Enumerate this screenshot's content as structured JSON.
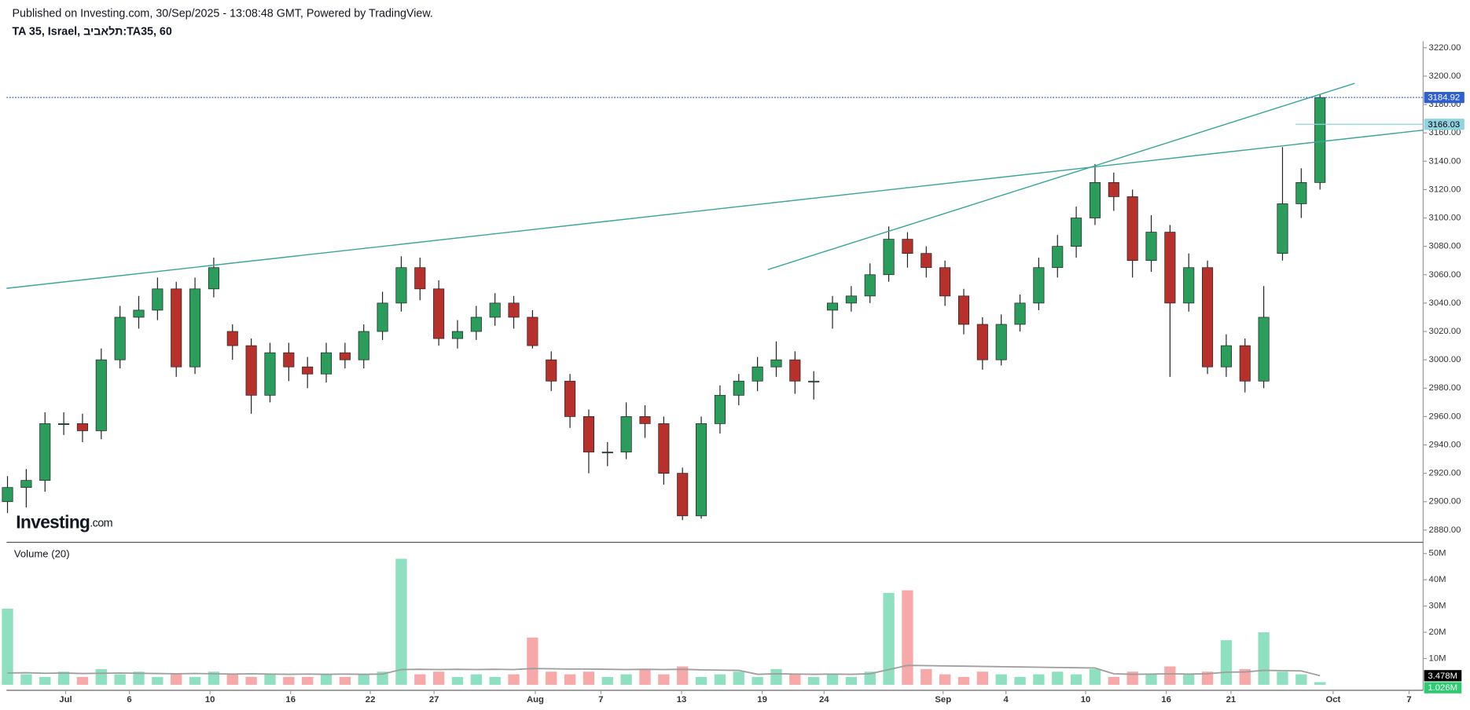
{
  "header": {
    "published": "Published on Investing.com, 30/Sep/2025 - 13:08:48 GMT, Powered by TradingView.",
    "symbol": "TA 35, Israel, תלאביב:TA35, 60"
  },
  "logo": {
    "brand": "Investing",
    "suffix": ".com"
  },
  "chart_data": {
    "type": "candlestick",
    "up_color": "#2a9d5c",
    "down_color": "#b7312c",
    "ylim": [
      2872,
      3224.6
    ],
    "yticks": [
      {
        "value": 2880,
        "label": "2880.00"
      },
      {
        "value": 2900,
        "label": "2900.00"
      },
      {
        "value": 2920,
        "label": "2920.00"
      },
      {
        "value": 2940,
        "label": "2940.00"
      },
      {
        "value": 2960,
        "label": "2960.00"
      },
      {
        "value": 2980,
        "label": "2980.00"
      },
      {
        "value": 3000,
        "label": "3000.00"
      },
      {
        "value": 3020,
        "label": "3020.00"
      },
      {
        "value": 3040,
        "label": "3040.00"
      },
      {
        "value": 3060,
        "label": "3060.00"
      },
      {
        "value": 3080,
        "label": "3080.00"
      },
      {
        "value": 3100,
        "label": "3100.00"
      },
      {
        "value": 3120,
        "label": "3120.00"
      },
      {
        "value": 3140,
        "label": "3140.00"
      },
      {
        "value": 3160,
        "label": "3160.00"
      },
      {
        "value": 3180,
        "label": "3180.00"
      },
      {
        "value": 3200,
        "label": "3200.00"
      },
      {
        "value": 3220,
        "label": "3220.00"
      }
    ],
    "grid": false,
    "xlim": [
      -0.05,
      75.5
    ],
    "xticks": [
      {
        "value": 3.1,
        "label": "Jul"
      },
      {
        "value": 6.5,
        "label": "6"
      },
      {
        "value": 10.8,
        "label": "10"
      },
      {
        "value": 15.1,
        "label": "16"
      },
      {
        "value": 19.35,
        "label": "22"
      },
      {
        "value": 22.75,
        "label": "27"
      },
      {
        "value": 28.15,
        "label": "Aug"
      },
      {
        "value": 31.65,
        "label": "7"
      },
      {
        "value": 35.95,
        "label": "13"
      },
      {
        "value": 40.25,
        "label": "19"
      },
      {
        "value": 43.55,
        "label": "24"
      },
      {
        "value": 49.9,
        "label": "Sep"
      },
      {
        "value": 53.25,
        "label": "4"
      },
      {
        "value": 57.5,
        "label": "10"
      },
      {
        "value": 61.8,
        "label": "16"
      },
      {
        "value": 65.25,
        "label": "21"
      },
      {
        "value": 70.7,
        "label": "Oct"
      },
      {
        "value": 74.75,
        "label": "7"
      }
    ],
    "open": [
      2900,
      2910,
      2915,
      2955,
      2955,
      2950,
      3000,
      3030,
      3035,
      3050,
      2995,
      3050,
      3020,
      3010,
      2975,
      3005,
      2995,
      2990,
      3005,
      3000,
      3020,
      3040,
      3065,
      3050,
      3015,
      3020,
      3030,
      3040,
      3030,
      3000,
      2985,
      2960,
      2935,
      2935,
      2960,
      2955,
      2920,
      2890,
      2955,
      2975,
      2985,
      2995,
      3000,
      2985,
      3035,
      3040,
      3045,
      3060,
      3085,
      3075,
      3065,
      3045,
      3025,
      3000,
      3025,
      3040,
      3065,
      3080,
      3100,
      3125,
      3115,
      3070,
      3090,
      3040,
      3065,
      2995,
      3010,
      2985,
      3075,
      3110,
      3125
    ],
    "high": [
      2918,
      2923,
      2963,
      2963,
      2962,
      3008,
      3038,
      3045,
      3058,
      3055,
      3058,
      3072,
      3025,
      3015,
      3012,
      3012,
      3002,
      3012,
      3012,
      3025,
      3048,
      3073,
      3072,
      3056,
      3028,
      3038,
      3047,
      3045,
      3035,
      3006,
      2990,
      2965,
      2942,
      2970,
      2968,
      2960,
      2924,
      2960,
      2982,
      2990,
      3002,
      3013,
      3006,
      2992,
      3045,
      3052,
      3068,
      3094,
      3090,
      3080,
      3070,
      3050,
      3030,
      3032,
      3046,
      3072,
      3088,
      3108,
      3138,
      3132,
      3120,
      3102,
      3095,
      3075,
      3070,
      3018,
      3015,
      3052,
      3150,
      3135,
      3187
    ],
    "low": [
      2892,
      2896,
      2907,
      2947,
      2942,
      2944,
      2994,
      3022,
      3028,
      2988,
      2990,
      3044,
      3000,
      2962,
      2970,
      2985,
      2980,
      2984,
      2994,
      2994,
      3014,
      3034,
      3042,
      3010,
      3008,
      3014,
      3024,
      3022,
      3008,
      2978,
      2952,
      2920,
      2925,
      2930,
      2945,
      2912,
      2887,
      2888,
      2948,
      2968,
      2978,
      2988,
      2976,
      2972,
      3022,
      3034,
      3040,
      3055,
      3065,
      3058,
      3038,
      3018,
      2993,
      2996,
      3020,
      3035,
      3058,
      3072,
      3095,
      3105,
      3058,
      3062,
      2988,
      3034,
      2990,
      2988,
      2977,
      2980,
      3070,
      3100,
      3120
    ],
    "close": [
      2910,
      2915,
      2955,
      2955,
      2950,
      3000,
      3030,
      3035,
      3050,
      2995,
      3050,
      3065,
      3010,
      2975,
      3005,
      2995,
      2990,
      3005,
      3000,
      3020,
      3040,
      3065,
      3050,
      3015,
      3020,
      3030,
      3040,
      3030,
      3010,
      2985,
      2960,
      2935,
      2935,
      2960,
      2955,
      2920,
      2890,
      2955,
      2975,
      2985,
      2995,
      3000,
      2985,
      2985,
      3040,
      3045,
      3060,
      3085,
      3075,
      3065,
      3045,
      3025,
      3000,
      3025,
      3040,
      3065,
      3080,
      3100,
      3125,
      3115,
      3070,
      3090,
      3040,
      3065,
      2995,
      3010,
      2985,
      3030,
      3110,
      3125,
      3184.92
    ],
    "trendlines": [
      {
        "x": [
          -0.05,
          75.5
        ],
        "y": [
          3050.4,
          3161.9
        ]
      },
      {
        "x": [
          40.55,
          71.85
        ],
        "y": [
          3063.6,
          3194.9
        ]
      }
    ],
    "trendline_color": "#3aa69a",
    "price_lines": [
      {
        "value": 3184.92,
        "dotted": true,
        "color": "#2f5fd0",
        "label_color": "#ffffff"
      },
      {
        "value": 3166.03,
        "from": 68.7,
        "dotted": false,
        "color": "#8fd3e0",
        "label_color": "#000000"
      }
    ],
    "volume": {
      "title": "Volume (20)",
      "up_color": "#8fe0c0",
      "down_color": "#f7a8a8",
      "ma_color": "#9e9e9e",
      "ylim": [
        -2.1,
        53.9
      ],
      "yticks": [
        {
          "value": 10,
          "label": "10M"
        },
        {
          "value": 20,
          "label": "20M"
        },
        {
          "value": 30,
          "label": "30M"
        },
        {
          "value": 40,
          "label": "40M"
        },
        {
          "value": 50,
          "label": "50M"
        }
      ],
      "values": [
        29,
        4,
        3,
        5,
        3,
        6,
        4,
        5,
        3,
        4,
        3,
        5,
        4,
        3,
        4,
        3,
        3,
        4,
        3,
        4,
        5,
        48,
        4,
        5,
        3,
        4,
        3,
        4,
        18,
        5,
        4,
        5,
        3,
        4,
        6,
        4,
        7,
        3,
        4,
        5,
        3,
        6,
        4,
        3,
        4,
        3,
        5,
        35,
        36,
        6,
        4,
        3,
        5,
        4,
        3,
        4,
        5,
        4,
        6,
        3,
        5,
        4,
        7,
        4,
        5,
        17,
        6,
        20,
        5,
        4,
        1.026
      ],
      "ma": [
        4.5,
        4.6,
        4.4,
        4.5,
        4.3,
        4.4,
        4.5,
        4.4,
        4.3,
        4.2,
        4.3,
        4.2,
        4.1,
        4.2,
        4.1,
        4.0,
        4.1,
        4.0,
        4.1,
        4.0,
        4.1,
        5.8,
        5.9,
        5.8,
        5.9,
        5.8,
        5.9,
        5.8,
        6.2,
        6.1,
        6.0,
        6.0,
        5.9,
        5.8,
        5.9,
        5.8,
        5.9,
        5.7,
        5.6,
        5.5,
        4.0,
        4.2,
        4.1,
        4.0,
        4.1,
        4.0,
        4.2,
        5.8,
        7.4,
        7.3,
        7.2,
        7.1,
        7.0,
        6.9,
        6.8,
        6.7,
        6.6,
        6.5,
        6.4,
        4.2,
        4.0,
        4.1,
        4.2,
        4.1,
        4.2,
        4.8,
        4.9,
        5.5,
        5.4,
        5.3,
        3.478
      ],
      "ma_label": "3.478M",
      "last_label": "1.026M"
    }
  }
}
